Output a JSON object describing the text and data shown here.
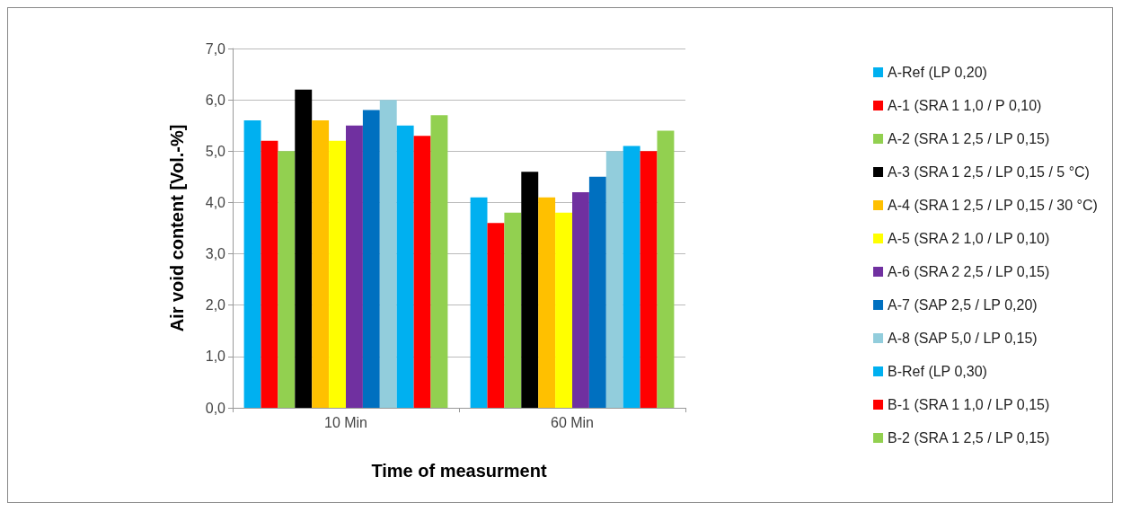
{
  "chart_data": {
    "type": "bar",
    "xlabel": "Time of measurment",
    "ylabel": "Air void content [Vol.-%]",
    "categories": [
      "10 Min",
      "60 Min"
    ],
    "series": [
      {
        "name": "A-Ref (LP 0,20)",
        "color": "#00b0f0",
        "values": [
          5.6,
          4.1
        ]
      },
      {
        "name": "A-1 (SRA 1 1,0 / P 0,10)",
        "color": "#ff0000",
        "values": [
          5.2,
          3.6
        ]
      },
      {
        "name": "A-2 (SRA 1 2,5 / LP 0,15)",
        "color": "#92d050",
        "values": [
          5.0,
          3.8
        ]
      },
      {
        "name": "A-3 (SRA 1 2,5 / LP 0,15 / 5 °C)",
        "color": "#000000",
        "values": [
          6.2,
          4.6
        ]
      },
      {
        "name": "A-4 (SRA 1 2,5 / LP 0,15 / 30 °C)",
        "color": "#ffc000",
        "values": [
          5.6,
          4.1
        ]
      },
      {
        "name": "A-5 (SRA 2 1,0 / LP 0,10)",
        "color": "#ffff00",
        "values": [
          5.2,
          3.8
        ]
      },
      {
        "name": "A-6 (SRA 2 2,5 / LP 0,15)",
        "color": "#7030a0",
        "values": [
          5.5,
          4.2
        ]
      },
      {
        "name": "A-7 (SAP 2,5 / LP 0,20)",
        "color": "#0070c0",
        "values": [
          5.8,
          4.5
        ]
      },
      {
        "name": "A-8 (SAP 5,0 / LP 0,15)",
        "color": "#92cddc",
        "values": [
          6.0,
          5.0
        ]
      },
      {
        "name": "B-Ref (LP 0,30)",
        "color": "#00b0f0",
        "values": [
          5.5,
          5.1
        ]
      },
      {
        "name": "B-1 (SRA 1 1,0 / LP 0,15)",
        "color": "#ff0000",
        "values": [
          5.3,
          5.0
        ]
      },
      {
        "name": "B-2 (SRA 1 2,5 / LP 0,15)",
        "color": "#92d050",
        "values": [
          5.7,
          5.4
        ]
      }
    ],
    "ylim": [
      0,
      7
    ],
    "yticks": [
      {
        "value": 0,
        "label": "0,0"
      },
      {
        "value": 1,
        "label": "1,0"
      },
      {
        "value": 2,
        "label": "2,0"
      },
      {
        "value": 3,
        "label": "3,0"
      },
      {
        "value": 4,
        "label": "4,0"
      },
      {
        "value": 5,
        "label": "5,0"
      },
      {
        "value": 6,
        "label": "6,0"
      },
      {
        "value": 7,
        "label": "7,0"
      }
    ],
    "grid": "y",
    "legend": "right"
  }
}
